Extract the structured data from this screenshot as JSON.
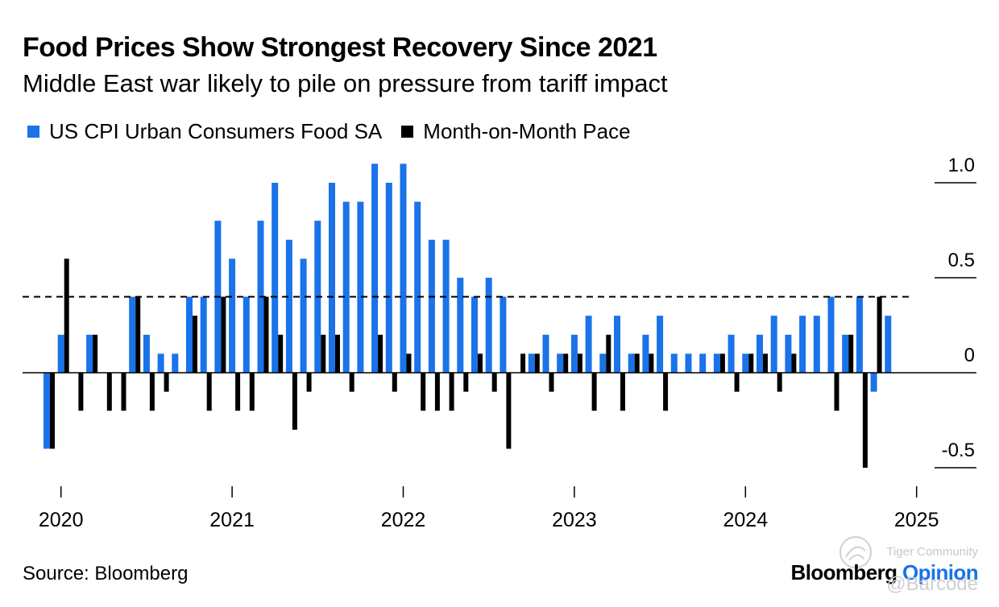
{
  "header": {
    "title": "Food Prices Show Strongest Recovery Since 2021",
    "subtitle": "Middle East war likely to pile on pressure from tariff impact"
  },
  "legend": [
    {
      "label": "US CPI Urban Consumers Food SA",
      "color": "#1a73e8"
    },
    {
      "label": "Month-on-Month Pace",
      "color": "#000000"
    }
  ],
  "footer": {
    "source": "Source: Bloomberg",
    "brand_first": "Bloomberg",
    "brand_second": "Opinion",
    "brand_second_color": "#1a73e8",
    "watermark_text": "Tiger Community",
    "watermark_handle": "@Barcode"
  },
  "chart_data": {
    "type": "bar",
    "x_start": "2019-12",
    "x_end": "2025-05",
    "x_ticks": [
      "2020",
      "2021",
      "2022",
      "2023",
      "2024",
      "2025"
    ],
    "ylim": [
      -0.6,
      1.1
    ],
    "y_ticks": [
      1.0,
      0.5,
      0,
      -0.5
    ],
    "y_tick_labels": [
      "1.0",
      "0.5",
      "0",
      "-0.5"
    ],
    "reference_line": {
      "value": 0.4,
      "style": "dashed"
    },
    "grid": false,
    "series": [
      {
        "name": "US CPI Urban Consumers Food SA",
        "color": "#1a73e8",
        "values": [
          -0.4,
          0.2,
          0.0,
          0.2,
          0.0,
          0.0,
          0.4,
          0.2,
          0.1,
          0.1,
          0.4,
          0.4,
          0.8,
          0.6,
          0.4,
          0.8,
          1.0,
          0.7,
          0.6,
          0.8,
          1.0,
          0.9,
          0.9,
          1.1,
          1.0,
          1.1,
          0.9,
          0.7,
          0.7,
          0.5,
          0.4,
          0.5,
          0.4,
          0.0,
          0.1,
          0.2,
          0.1,
          0.2,
          0.3,
          0.1,
          0.3,
          0.1,
          0.2,
          0.3,
          0.1,
          0.1,
          0.1,
          0.1,
          0.2,
          0.1,
          0.2,
          0.3,
          0.2,
          0.3,
          0.3,
          0.4,
          0.2,
          0.4,
          -0.1,
          0.3
        ]
      },
      {
        "name": "Month-on-Month Pace",
        "color": "#000000",
        "values": [
          -0.4,
          0.6,
          -0.2,
          0.2,
          -0.2,
          -0.2,
          0.4,
          -0.2,
          -0.1,
          0.0,
          0.3,
          -0.2,
          0.4,
          -0.2,
          -0.2,
          0.4,
          0.2,
          -0.3,
          -0.1,
          0.2,
          0.2,
          -0.1,
          0.0,
          0.2,
          -0.1,
          0.1,
          -0.2,
          -0.2,
          -0.2,
          -0.1,
          0.1,
          -0.1,
          -0.4,
          0.1,
          0.1,
          -0.1,
          0.1,
          0.1,
          -0.2,
          0.2,
          -0.2,
          0.1,
          0.1,
          -0.2,
          0.0,
          0.0,
          0.0,
          0.1,
          -0.1,
          0.1,
          0.1,
          -0.1,
          0.1,
          0.0,
          0.0,
          -0.2,
          0.2,
          -0.5,
          0.4,
          0.0
        ]
      }
    ]
  }
}
